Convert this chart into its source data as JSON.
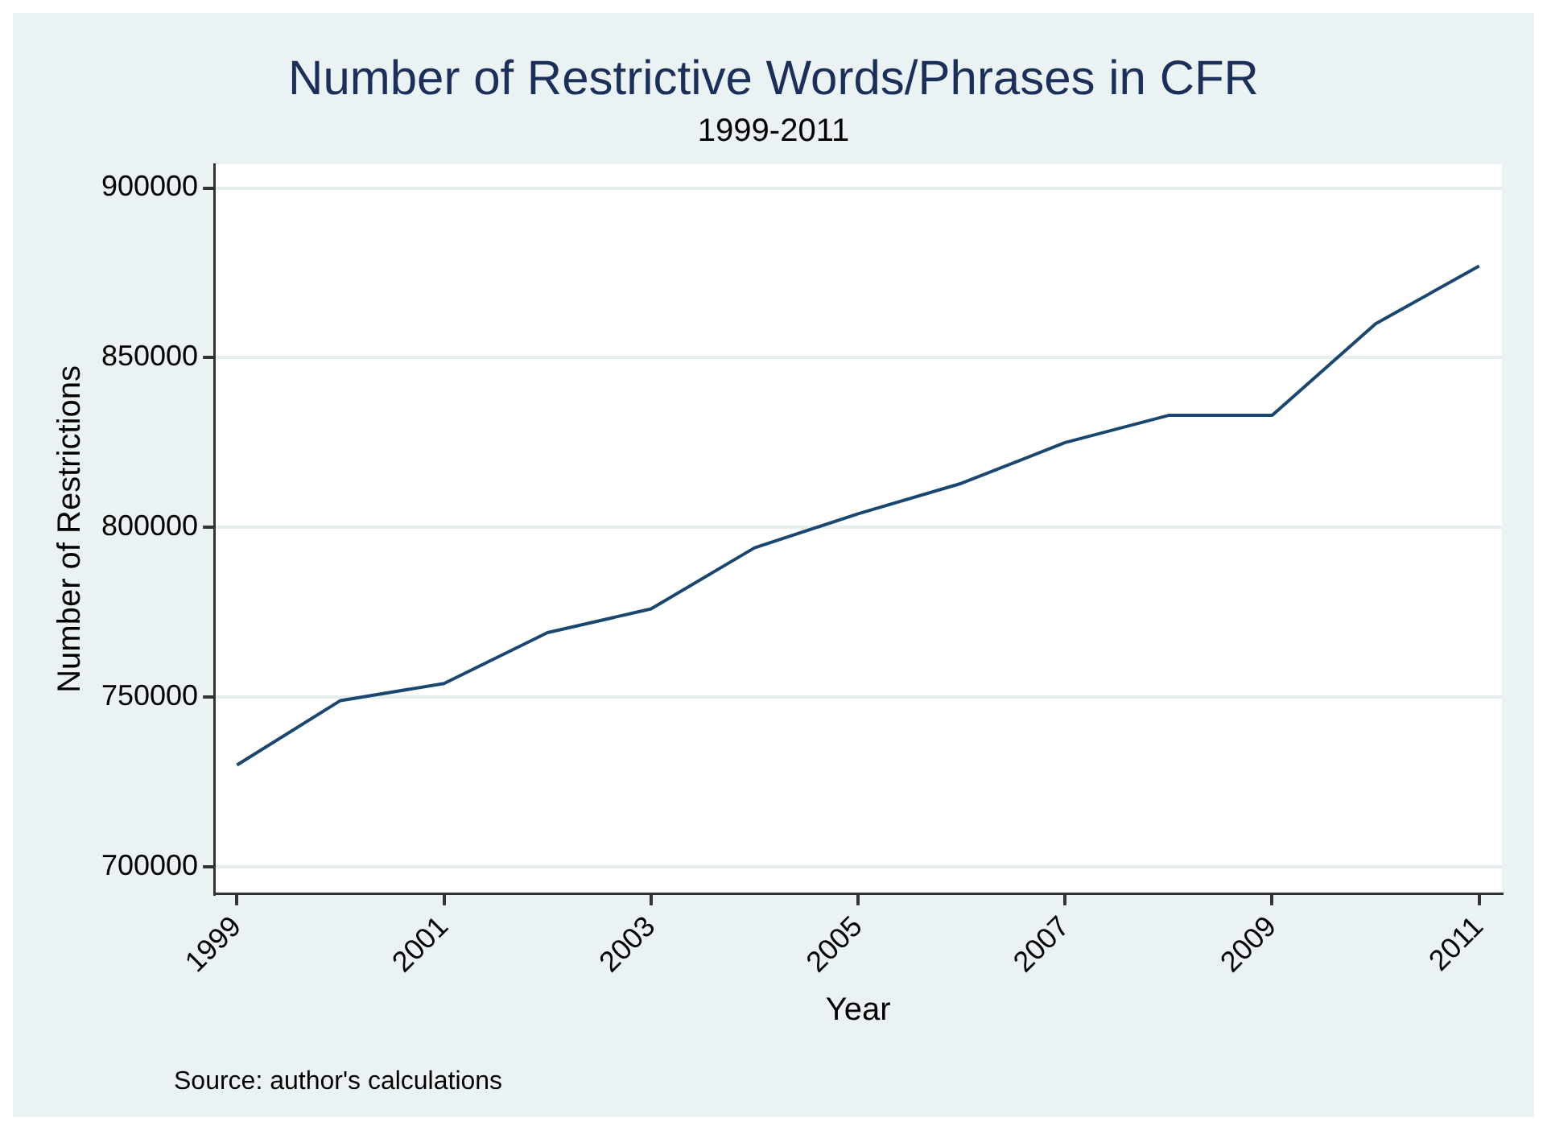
{
  "chart_data": {
    "type": "line",
    "title": "Number of Restrictive Words/Phrases in CFR",
    "subtitle": "1999-2011",
    "xlabel": "Year",
    "ylabel": "Number of Restrictions",
    "x": [
      1999,
      2000,
      2001,
      2002,
      2003,
      2004,
      2005,
      2006,
      2007,
      2008,
      2009,
      2010,
      2011
    ],
    "series": [
      {
        "color": "#1a476f",
        "values": [
          730000,
          749000,
          754000,
          769000,
          776000,
          794000,
          804000,
          813000,
          825000,
          833000,
          833000,
          860000,
          877000
        ]
      }
    ],
    "xlim": [
      1998.78,
      2011.22
    ],
    "xticks": [
      1999,
      2001,
      2003,
      2005,
      2007,
      2009,
      2011
    ],
    "ylim": [
      692000,
      907000
    ],
    "yticks": [
      700000,
      750000,
      800000,
      850000,
      900000
    ],
    "grid": "y",
    "legend": false,
    "marker": "none",
    "line_style": "solid",
    "annotations": [
      "Source: author's calculations"
    ]
  }
}
